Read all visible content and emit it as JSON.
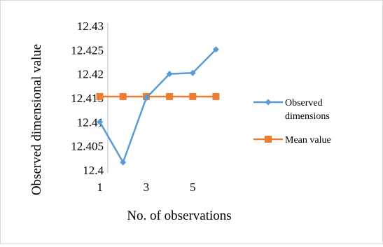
{
  "chart_data": {
    "type": "line",
    "title": "",
    "xlabel": "No. of observations",
    "ylabel": "Observed dimensional value",
    "x": [
      1,
      2,
      3,
      4,
      5,
      6
    ],
    "x_tick_labels": [
      "1",
      "3",
      "5"
    ],
    "y_tick_labels": [
      "12.4",
      "12.405",
      "12.41",
      "12.415",
      "12.42",
      "12.425",
      "12.43"
    ],
    "ylim": [
      12.4,
      12.43
    ],
    "grid": false,
    "legend_position": "right",
    "series": [
      {
        "name": "Observed dimensions",
        "name_lines": [
          "Observed",
          "dimensions"
        ],
        "color": "#5b9bd5",
        "marker": "diamond",
        "values": [
          12.41,
          12.4016,
          12.415,
          12.42,
          12.4202,
          12.4251
        ]
      },
      {
        "name": "Mean value",
        "color": "#ed7d31",
        "marker": "square",
        "values": [
          12.4153,
          12.4153,
          12.4153,
          12.4153,
          12.4153,
          12.4153
        ]
      }
    ]
  }
}
